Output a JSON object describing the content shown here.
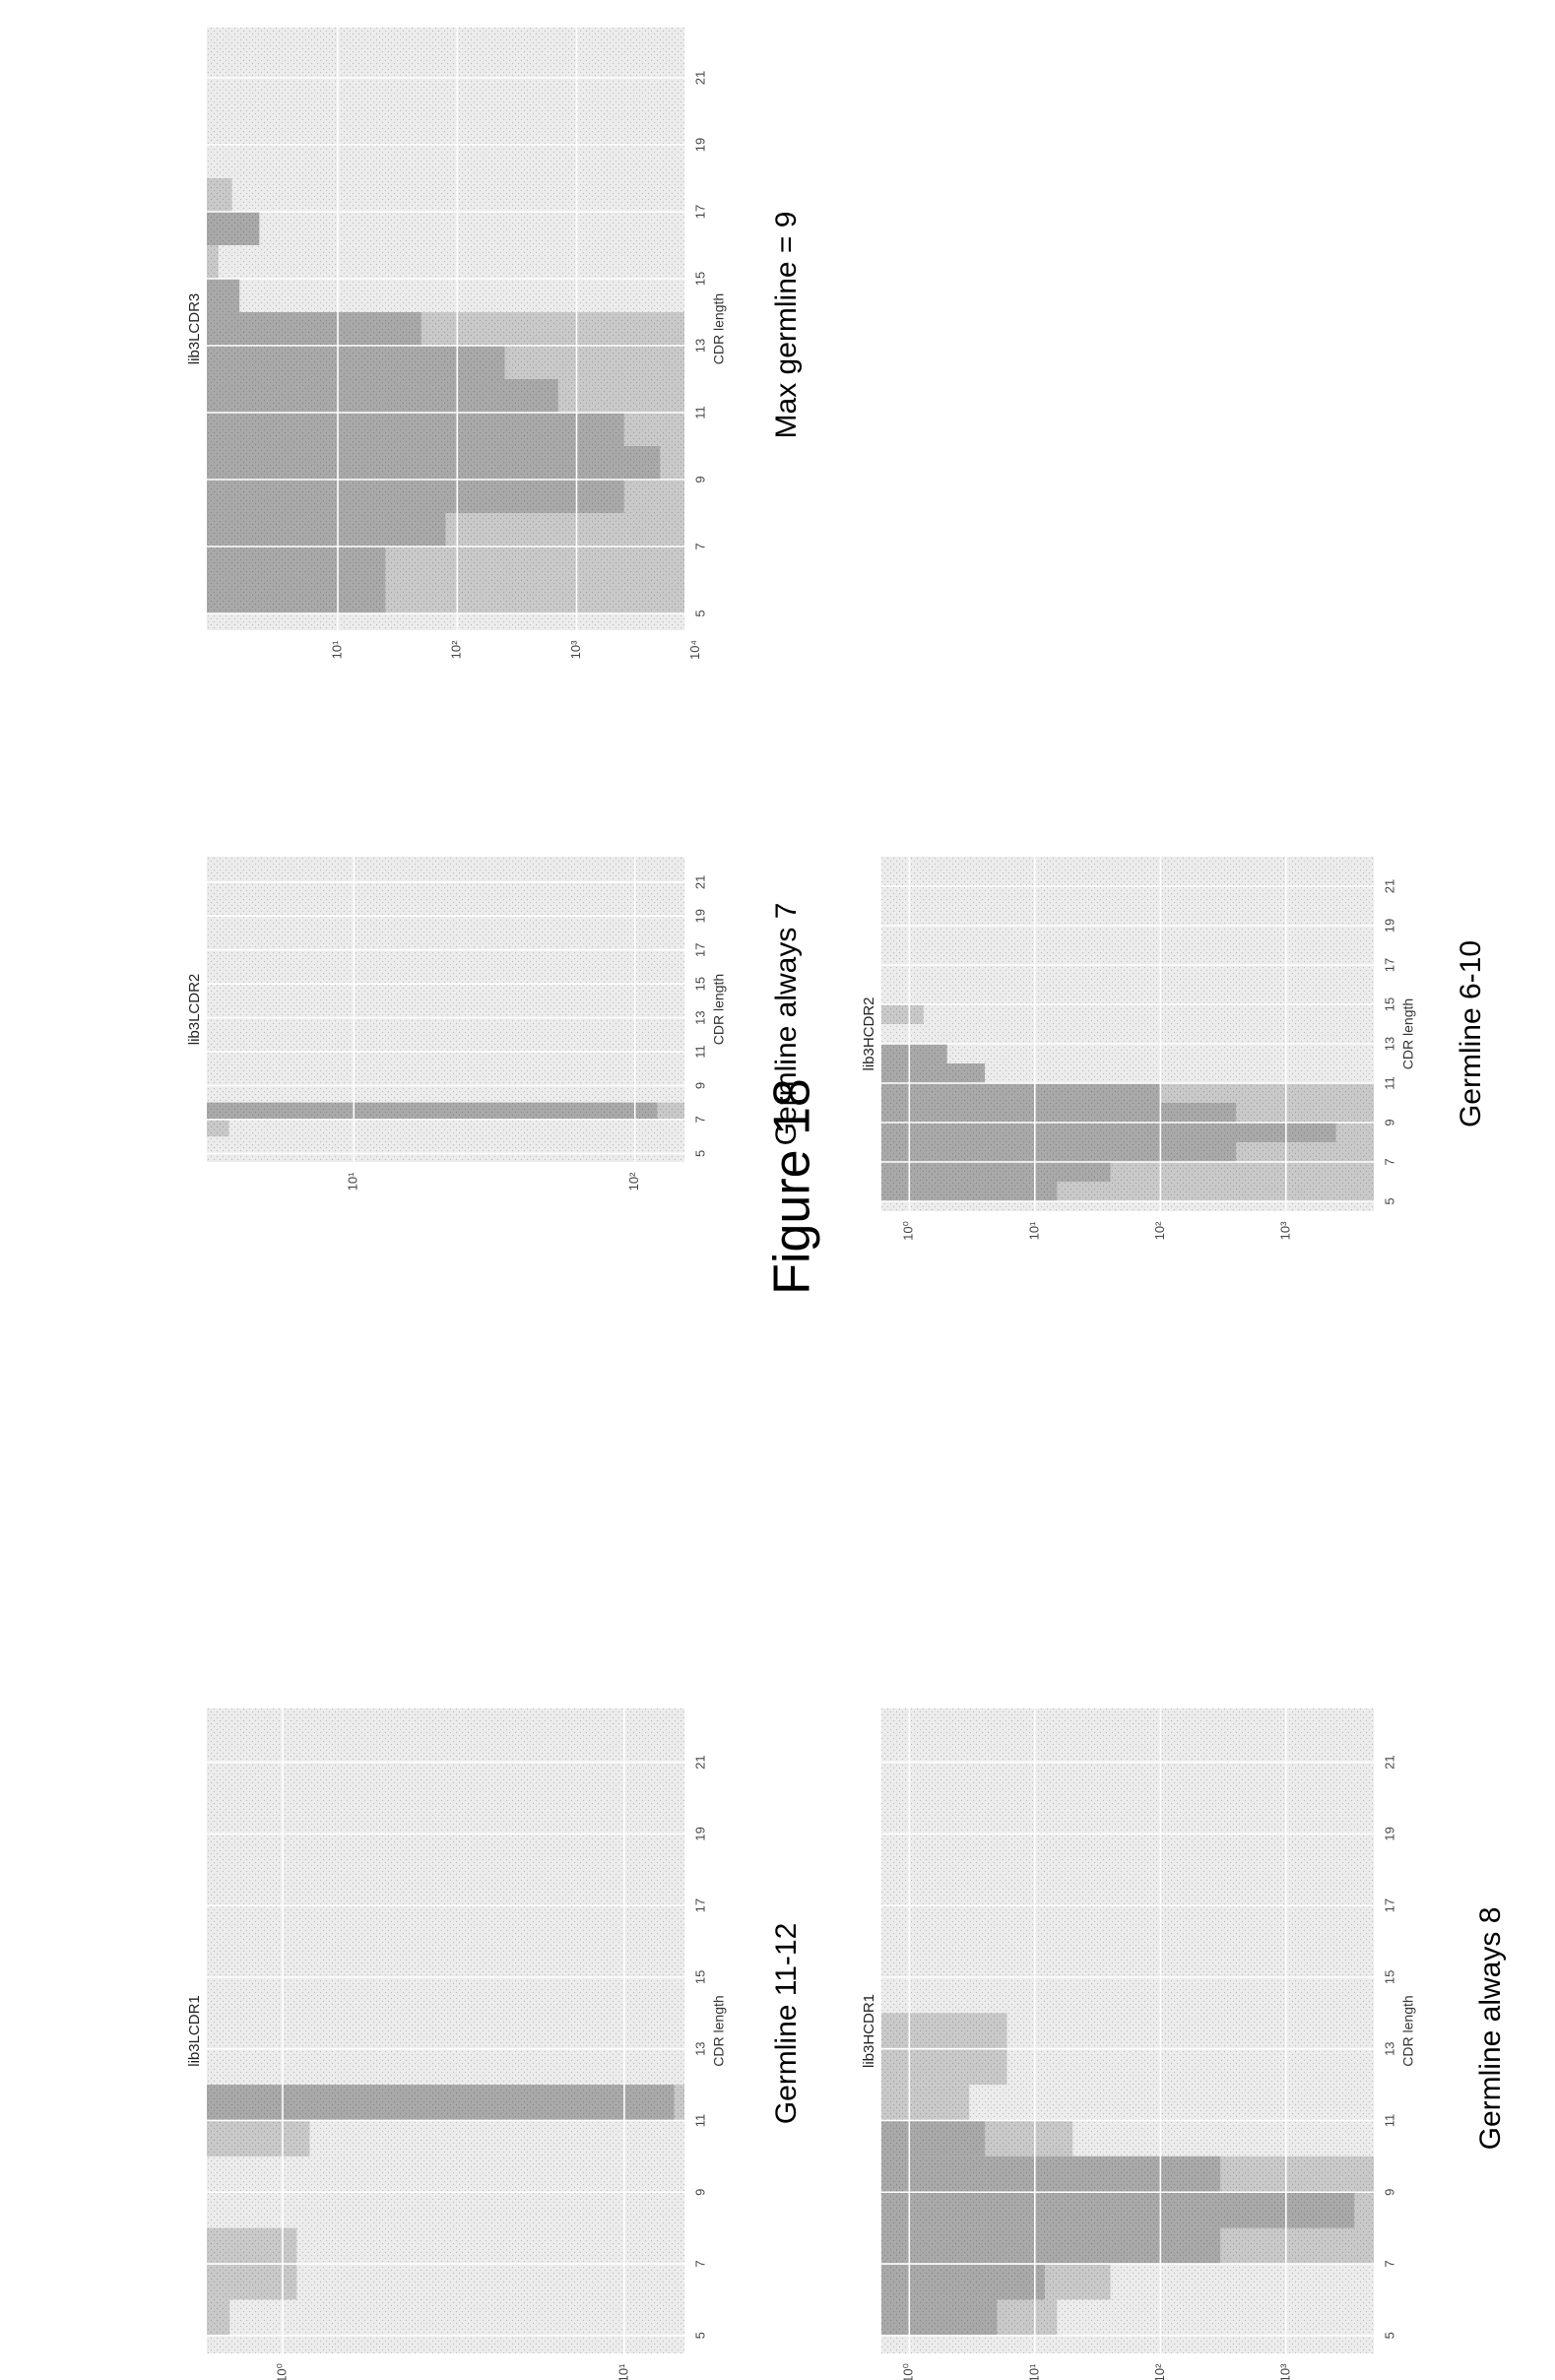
{
  "figure_title": "Figure 18",
  "colors": {
    "plot_bg": "#ececec",
    "band": "#c9c9c9",
    "core": "#a9a9a9",
    "grid": "#ffffff"
  },
  "chart_data": [
    {
      "id": "p1",
      "type": "bar",
      "title": "lib3LCDR1",
      "xlabel": "CDR length",
      "ylabel": "",
      "xlim": [
        4.5,
        22.5
      ],
      "ylim": [
        0.6,
        15
      ],
      "log_y": true,
      "xticks": [
        5,
        7,
        9,
        11,
        13,
        15,
        17,
        19,
        21
      ],
      "yticks": [
        {
          "value": 1,
          "label": "10⁰"
        },
        {
          "value": 10,
          "label": "10¹"
        }
      ],
      "caption": "Germline 11-12",
      "series": [
        {
          "name": "",
          "kind": "band",
          "bars": [
            [
              5,
              6,
              0.7
            ],
            [
              6,
              8,
              1.1
            ],
            [
              10,
              11,
              1.2
            ],
            [
              11,
              12,
              15
            ]
          ]
        },
        {
          "name": "",
          "kind": "core",
          "bars": [
            [
              11,
              12,
              14
            ]
          ]
        }
      ]
    },
    {
      "id": "p2",
      "type": "bar",
      "title": "lib3LCDR2",
      "xlabel": "CDR length",
      "ylabel": "",
      "xlim": [
        4.5,
        22.5
      ],
      "ylim": [
        3,
        150
      ],
      "log_y": true,
      "xticks": [
        5,
        7,
        9,
        11,
        13,
        15,
        17,
        19,
        21
      ],
      "yticks": [
        {
          "value": 10,
          "label": "10¹"
        },
        {
          "value": 100,
          "label": "10²"
        }
      ],
      "caption": "Germline always 7",
      "series": [
        {
          "name": "",
          "kind": "band",
          "bars": [
            [
              6,
              7,
              3.6
            ],
            [
              7,
              8,
              150
            ]
          ]
        },
        {
          "name": "",
          "kind": "core",
          "bars": [
            [
              7,
              8,
              120
            ]
          ]
        }
      ]
    },
    {
      "id": "p3",
      "type": "bar",
      "title": "lib3LCDR3",
      "xlabel": "CDR length",
      "ylabel": "",
      "xlim": [
        4.5,
        22.5
      ],
      "ylim": [
        0.8,
        8000
      ],
      "log_y": true,
      "xticks": [
        5,
        7,
        9,
        11,
        13,
        15,
        17,
        19,
        21
      ],
      "yticks": [
        {
          "value": 10,
          "label": "10¹"
        },
        {
          "value": 100,
          "label": "10²"
        },
        {
          "value": 1000,
          "label": "10³"
        },
        {
          "value": 10000,
          "label": "10⁴"
        }
      ],
      "caption": "Max germline = 9",
      "series": [
        {
          "name": "",
          "kind": "band",
          "bars": [
            [
              5,
              14,
              8000
            ],
            [
              14,
              15,
              1.5
            ],
            [
              15,
              16,
              1.0
            ],
            [
              16,
              17,
              2.2
            ],
            [
              17,
              18,
              1.3
            ]
          ]
        },
        {
          "name": "",
          "kind": "core",
          "bars": [
            [
              5,
              7,
              25
            ],
            [
              7,
              8,
              80
            ],
            [
              8,
              9,
              2500
            ],
            [
              9,
              10,
              5000
            ],
            [
              10,
              11,
              2500
            ],
            [
              11,
              12,
              700
            ],
            [
              12,
              13,
              250
            ],
            [
              13,
              14,
              50
            ],
            [
              14,
              15,
              1.5
            ],
            [
              16,
              17,
              2.2
            ]
          ]
        }
      ]
    },
    {
      "id": "p4",
      "type": "bar",
      "title": "lib3HCDR1",
      "xlabel": "CDR length",
      "ylabel": "",
      "xlim": [
        4.5,
        22.5
      ],
      "ylim": [
        0.6,
        5000
      ],
      "log_y": true,
      "xticks": [
        5,
        7,
        9,
        11,
        13,
        15,
        17,
        19,
        21
      ],
      "yticks": [
        {
          "value": 1,
          "label": "10⁰"
        },
        {
          "value": 10,
          "label": "10¹"
        },
        {
          "value": 100,
          "label": "10²"
        },
        {
          "value": 1000,
          "label": "10³"
        }
      ],
      "caption": "Germline always 8",
      "series": [
        {
          "name": "",
          "kind": "band",
          "bars": [
            [
              5,
              6,
              15
            ],
            [
              6,
              7,
              40
            ],
            [
              7,
              10,
              5000
            ],
            [
              10,
              11,
              20
            ],
            [
              11,
              12,
              3
            ],
            [
              12,
              14,
              6
            ]
          ]
        },
        {
          "name": "",
          "kind": "core",
          "bars": [
            [
              5,
              6,
              5
            ],
            [
              6,
              7,
              12
            ],
            [
              7,
              8,
              300
            ],
            [
              8,
              9,
              3500
            ],
            [
              9,
              10,
              300
            ],
            [
              10,
              11,
              4
            ]
          ]
        }
      ]
    },
    {
      "id": "p5",
      "type": "bar",
      "title": "lib3HCDR2",
      "xlabel": "CDR length",
      "ylabel": "",
      "xlim": [
        4.5,
        22.5
      ],
      "ylim": [
        0.6,
        5000
      ],
      "log_y": true,
      "xticks": [
        5,
        7,
        9,
        11,
        13,
        15,
        17,
        19,
        21
      ],
      "yticks": [
        {
          "value": 1,
          "label": "10⁰"
        },
        {
          "value": 10,
          "label": "10¹"
        },
        {
          "value": 100,
          "label": "10²"
        },
        {
          "value": 1000,
          "label": "10³"
        }
      ],
      "caption": "Germline 6-10",
      "series": [
        {
          "name": "",
          "kind": "band",
          "bars": [
            [
              5,
              11,
              5000
            ],
            [
              11,
              12,
              4
            ],
            [
              12,
              13,
              2
            ],
            [
              14,
              15,
              1.3
            ]
          ]
        },
        {
          "name": "",
          "kind": "core",
          "bars": [
            [
              5,
              6,
              15
            ],
            [
              6,
              7,
              40
            ],
            [
              7,
              8,
              400
            ],
            [
              8,
              9,
              2500
            ],
            [
              9,
              10,
              400
            ],
            [
              10,
              11,
              100
            ],
            [
              11,
              12,
              4
            ],
            [
              12,
              13,
              2
            ]
          ]
        }
      ]
    }
  ]
}
